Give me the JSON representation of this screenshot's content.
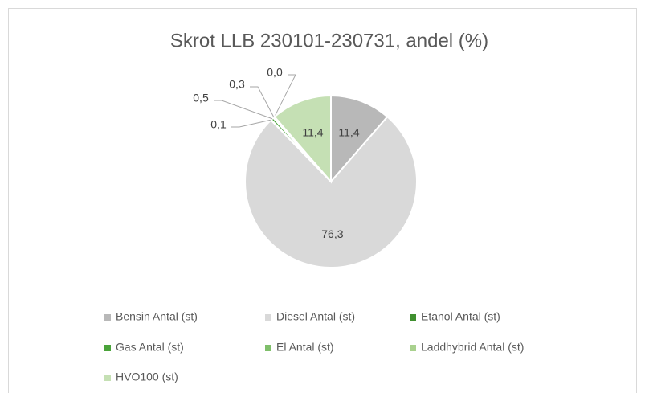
{
  "chart_data": {
    "type": "pie",
    "title": "Skrot LLB 230101-230731, andel (%)",
    "categories": [
      "Bensin Antal (st)",
      "Diesel Antal (st)",
      "Etanol Antal (st)",
      "Gas Antal (st)",
      "El Antal (st)",
      "Laddhybrid Antal (st)",
      "HVO100 (st)"
    ],
    "values": [
      11.4,
      76.3,
      0.1,
      0.5,
      0.3,
      0.0,
      11.4
    ],
    "value_labels": [
      "11,4",
      "76,3",
      "0,1",
      "0,5",
      "0,3",
      "0,0",
      "11,4"
    ],
    "colors": [
      "#b8b8b8",
      "#d9d9d9",
      "#3f8f2f",
      "#4aa33a",
      "#7fbf6a",
      "#a9d18e",
      "#c5e0b4"
    ],
    "legend": "bottom"
  }
}
